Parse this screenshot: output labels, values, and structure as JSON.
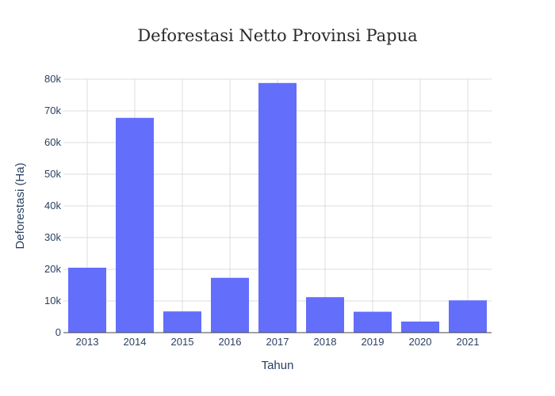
{
  "chart_data": {
    "type": "bar",
    "title": "Deforestasi Netto Provinsi Papua",
    "xlabel": "Tahun",
    "ylabel": "Deforestasi (Ha)",
    "categories": [
      "2013",
      "2014",
      "2015",
      "2016",
      "2017",
      "2018",
      "2019",
      "2020",
      "2021"
    ],
    "values": [
      20500,
      67800,
      6700,
      17300,
      78800,
      11200,
      6600,
      3500,
      10200
    ],
    "ylim": [
      0,
      80000
    ],
    "yticks": [
      0,
      10000,
      20000,
      30000,
      40000,
      50000,
      60000,
      70000,
      80000
    ],
    "ytick_labels": [
      "0",
      "10k",
      "20k",
      "30k",
      "40k",
      "50k",
      "60k",
      "70k",
      "80k"
    ],
    "bar_color": "#636efa",
    "grid": true,
    "legend": "none"
  }
}
